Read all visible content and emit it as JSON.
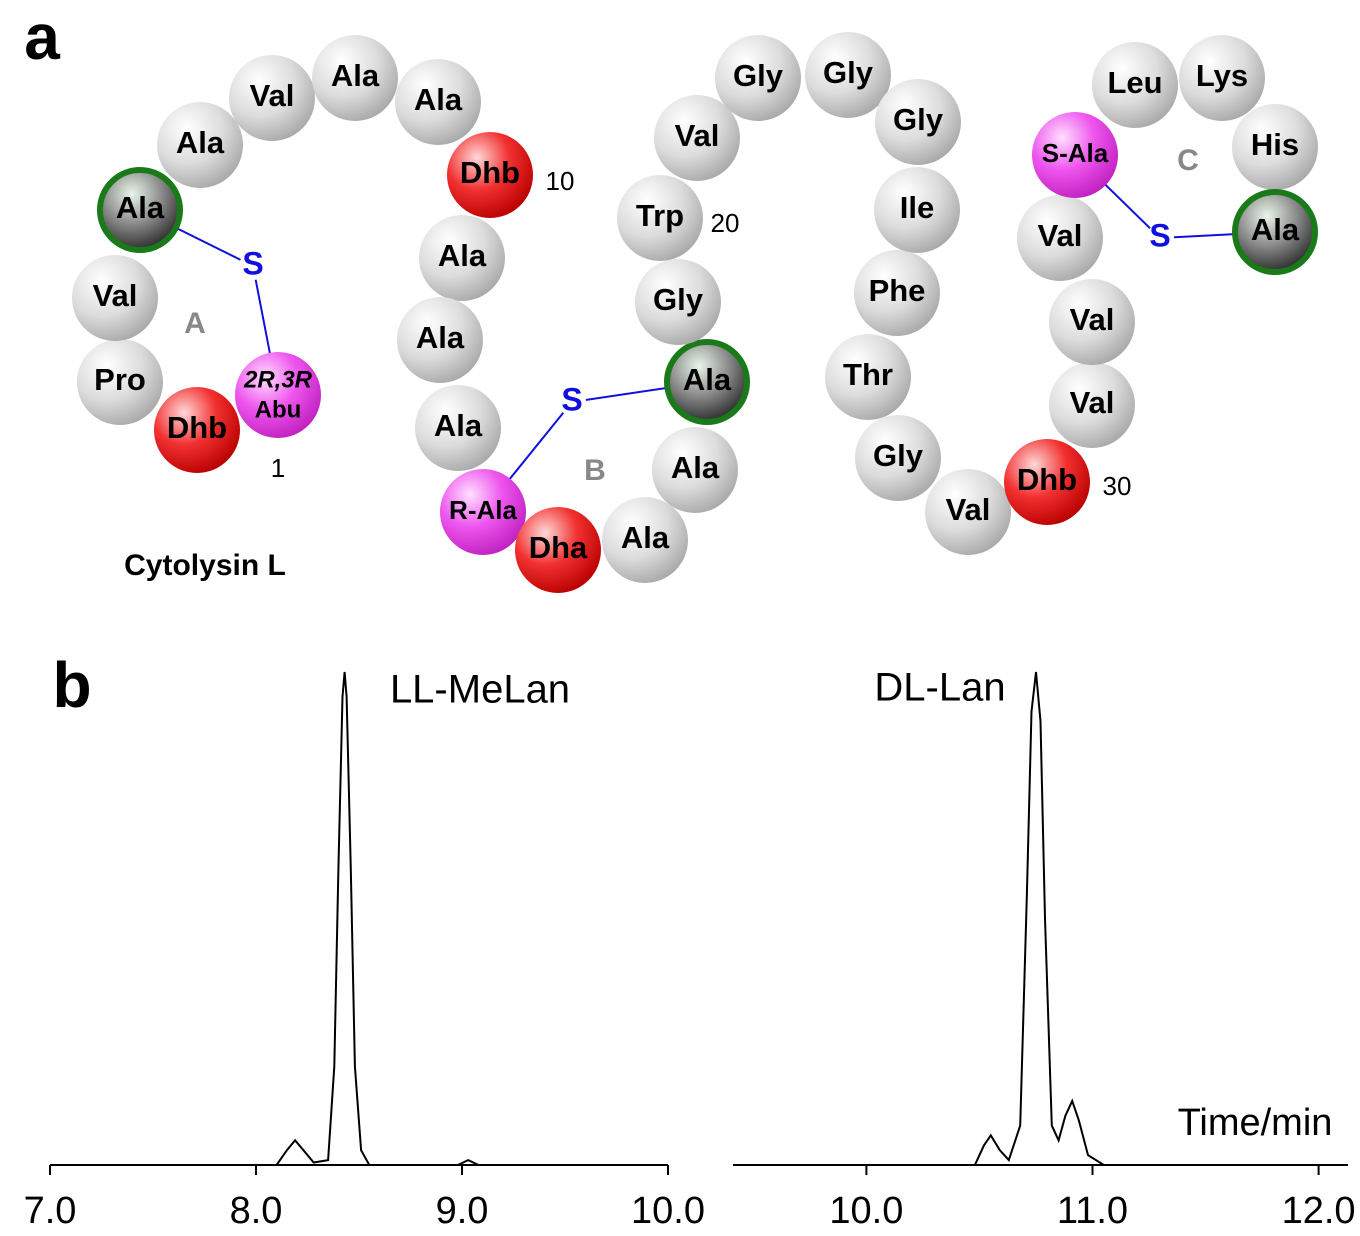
{
  "panel_labels": [
    "a",
    "b"
  ],
  "diagram": {
    "title": "Cytolysin L",
    "residues": [
      {
        "label": [
          "2R,3R",
          "Abu"
        ],
        "kind": "magenta"
      },
      {
        "label": "Dhb",
        "kind": "red"
      },
      {
        "label": "Pro",
        "kind": "gray"
      },
      {
        "label": "Val",
        "kind": "gray"
      },
      {
        "label": "Ala",
        "kind": "green"
      },
      {
        "label": "Ala",
        "kind": "gray"
      },
      {
        "label": "Val",
        "kind": "gray"
      },
      {
        "label": "Ala",
        "kind": "gray"
      },
      {
        "label": "Ala",
        "kind": "gray"
      },
      {
        "label": "Dhb",
        "kind": "red"
      },
      {
        "label": "Ala",
        "kind": "gray"
      },
      {
        "label": "Ala",
        "kind": "gray"
      },
      {
        "label": "Ala",
        "kind": "gray"
      },
      {
        "label": "R-Ala",
        "kind": "magenta"
      },
      {
        "label": "Dha",
        "kind": "red"
      },
      {
        "label": "Ala",
        "kind": "gray"
      },
      {
        "label": "Ala",
        "kind": "gray"
      },
      {
        "label": "Ala",
        "kind": "green"
      },
      {
        "label": "Gly",
        "kind": "gray"
      },
      {
        "label": "Trp",
        "kind": "gray"
      },
      {
        "label": "Val",
        "kind": "gray"
      },
      {
        "label": "Gly",
        "kind": "gray"
      },
      {
        "label": "Gly",
        "kind": "gray"
      },
      {
        "label": "Gly",
        "kind": "gray"
      },
      {
        "label": "Ile",
        "kind": "gray"
      },
      {
        "label": "Phe",
        "kind": "gray"
      },
      {
        "label": "Thr",
        "kind": "gray"
      },
      {
        "label": "Gly",
        "kind": "gray"
      },
      {
        "label": "Val",
        "kind": "gray"
      },
      {
        "label": "Dhb",
        "kind": "red"
      },
      {
        "label": "Val",
        "kind": "gray"
      },
      {
        "label": "Val",
        "kind": "gray"
      },
      {
        "label": "Val",
        "kind": "gray"
      },
      {
        "label": "S-Ala",
        "kind": "magenta"
      },
      {
        "label": "Leu",
        "kind": "gray"
      },
      {
        "label": "Lys",
        "kind": "gray"
      },
      {
        "label": "His",
        "kind": "gray"
      },
      {
        "label": "Ala",
        "kind": "green"
      }
    ],
    "ring_labels": [
      "A",
      "B",
      "C"
    ],
    "bridges": [
      "S",
      "S",
      "S"
    ],
    "position_numbers": [
      "1",
      "10",
      "20",
      "30"
    ]
  },
  "chart_data": [
    {
      "type": "line",
      "annotation": "LL-MeLan",
      "color": "#000000",
      "x": [
        7.0,
        8.1,
        8.15,
        8.19,
        8.23,
        8.28,
        8.35,
        8.38,
        8.4,
        8.42,
        8.43,
        8.44,
        8.46,
        8.48,
        8.51,
        8.55,
        8.98,
        9.03,
        9.08,
        10.0
      ],
      "values": [
        0,
        0,
        3,
        5,
        3,
        0.5,
        1,
        20,
        60,
        95,
        100,
        95,
        60,
        20,
        3,
        0,
        0,
        1,
        0,
        0
      ],
      "xlim": [
        7.0,
        10.0
      ],
      "ylim": [
        0,
        100
      ],
      "xticks": [
        {
          "value": 7,
          "label": "7.0"
        },
        {
          "value": 8,
          "label": "8.0"
        },
        {
          "value": 9,
          "label": "9.0"
        },
        {
          "value": 10,
          "label": "10.0"
        }
      ]
    },
    {
      "type": "line",
      "annotation": "DL-Lan",
      "x_label": "Time/min",
      "color": "#000000",
      "x": [
        9.41,
        10.48,
        10.52,
        10.55,
        10.59,
        10.63,
        10.68,
        10.71,
        10.73,
        10.75,
        10.77,
        10.79,
        10.82,
        10.85,
        10.88,
        10.91,
        10.94,
        10.98,
        11.05,
        12.13
      ],
      "values": [
        0,
        0,
        4,
        6,
        3,
        1,
        8,
        55,
        92,
        100,
        90,
        50,
        8,
        5,
        10,
        13,
        9,
        2,
        0,
        0
      ],
      "xlim": [
        9.41,
        12.13
      ],
      "ylim": [
        0,
        100
      ],
      "xticks": [
        {
          "value": 10,
          "label": "10.0"
        },
        {
          "value": 11,
          "label": "11.0"
        },
        {
          "value": 12,
          "label": "12.0"
        }
      ]
    }
  ]
}
